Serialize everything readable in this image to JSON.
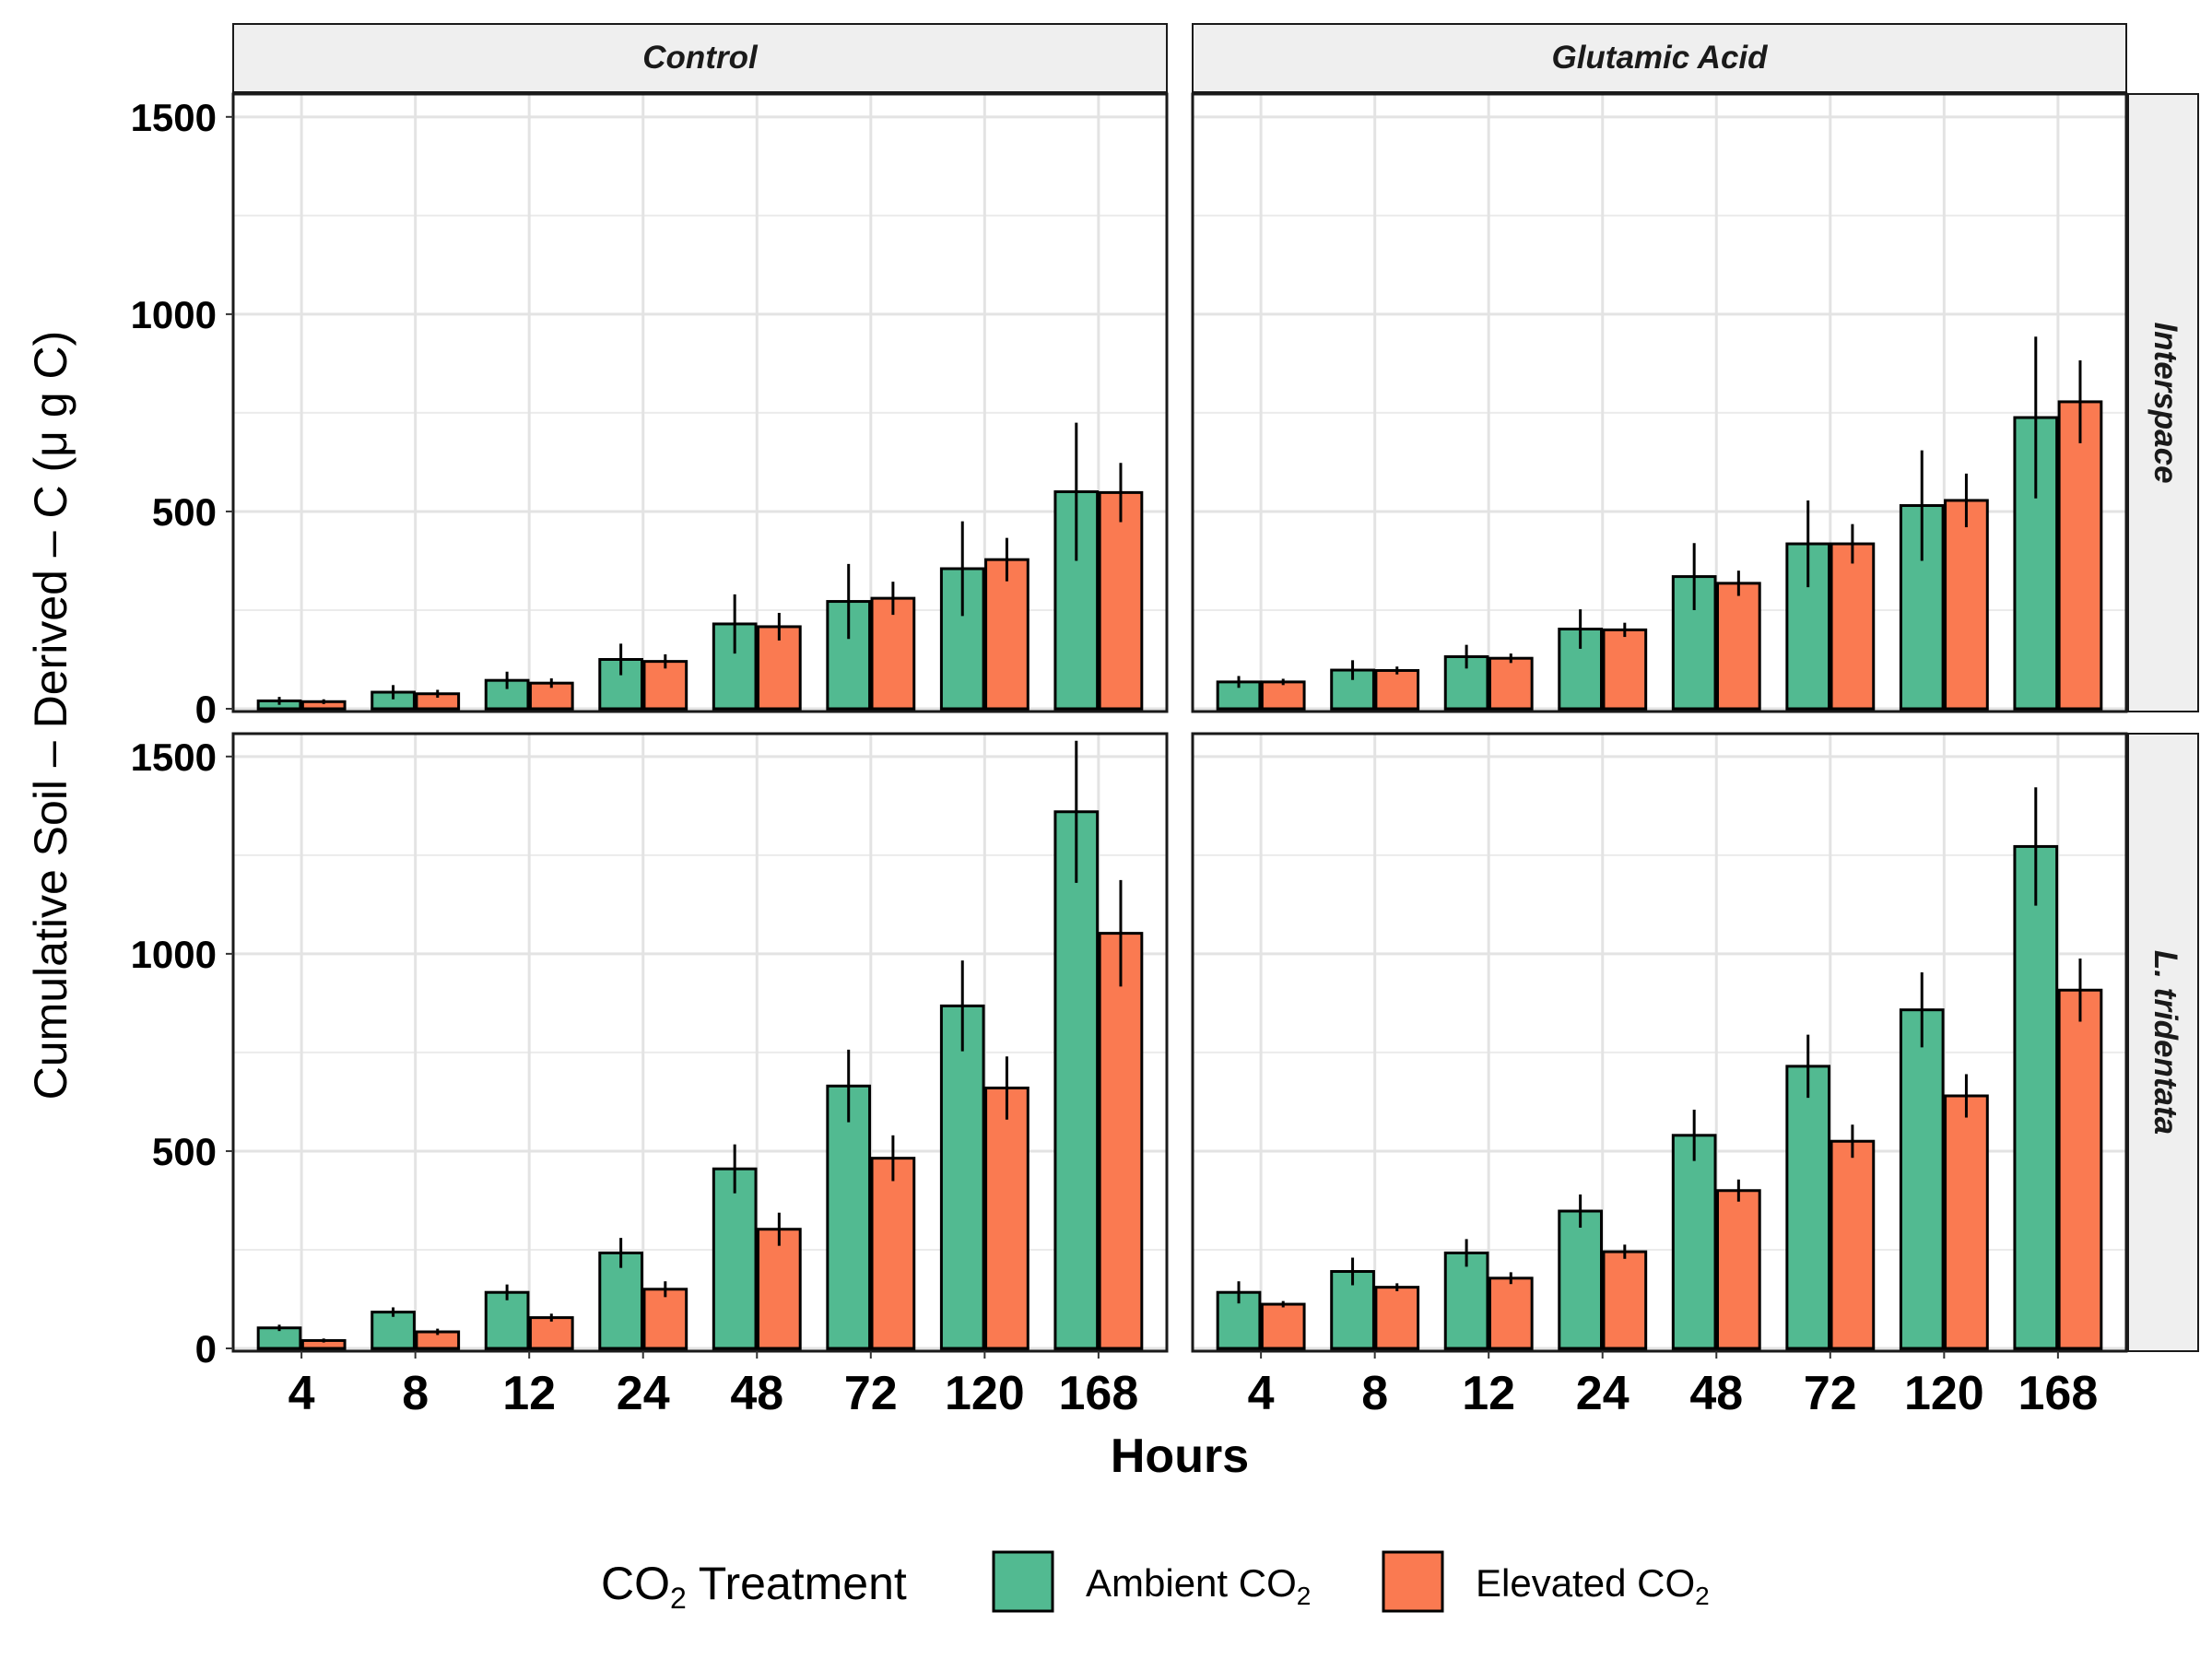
{
  "chart_data": {
    "type": "bar",
    "ylabel": "Cumulative Soil – Derived – C (μ g C)",
    "xlabel": "Hours",
    "categories": [
      "4",
      "8",
      "12",
      "24",
      "48",
      "72",
      "120",
      "168"
    ],
    "ylim": [
      0,
      1600
    ],
    "yticks": [
      0,
      500,
      1000,
      1500
    ],
    "grid": true,
    "legend": {
      "title_main": "CO",
      "title_sub": "2",
      "title_rest": " Treatment",
      "placement": "bottom",
      "items": [
        {
          "label_main": "Ambient CO",
          "label_sub": "2",
          "color": "#52BA91"
        },
        {
          "label_main": "Elevated CO",
          "label_sub": "2",
          "color": "#FA7A51"
        }
      ]
    },
    "column_facets": [
      "Control",
      "Glutamic Acid"
    ],
    "row_facets": [
      "Interspace",
      "L. tridentata"
    ],
    "panels": [
      {
        "row": 0,
        "col": 0,
        "series": [
          {
            "name": "Ambient CO2",
            "values": [
              20,
              42,
              72,
              125,
              215,
              272,
              355,
              550
            ],
            "err": [
              10,
              18,
              22,
              40,
              75,
              95,
              120,
              175
            ]
          },
          {
            "name": "Elevated CO2",
            "values": [
              18,
              38,
              65,
              120,
              208,
              280,
              378,
              548
            ],
            "err": [
              6,
              10,
              12,
              18,
              35,
              42,
              55,
              75
            ]
          }
        ]
      },
      {
        "row": 0,
        "col": 1,
        "series": [
          {
            "name": "Ambient CO2",
            "values": [
              68,
              98,
              132,
              202,
              335,
              418,
              515,
              738
            ],
            "err": [
              15,
              25,
              30,
              50,
              85,
              110,
              140,
              205
            ]
          },
          {
            "name": "Elevated CO2",
            "values": [
              68,
              97,
              128,
              200,
              318,
              418,
              528,
              778
            ],
            "err": [
              8,
              10,
              12,
              18,
              32,
              50,
              68,
              105
            ]
          }
        ]
      },
      {
        "row": 1,
        "col": 0,
        "series": [
          {
            "name": "Ambient CO2",
            "values": [
              52,
              92,
              142,
              242,
              455,
              665,
              868,
              1360
            ],
            "err": [
              8,
              12,
              20,
              38,
              62,
              92,
              115,
              180
            ]
          },
          {
            "name": "Elevated CO2",
            "values": [
              20,
              42,
              78,
              150,
              302,
              482,
              660,
              1052
            ],
            "err": [
              5,
              8,
              10,
              20,
              42,
              58,
              80,
              135
            ]
          }
        ]
      },
      {
        "row": 1,
        "col": 1,
        "series": [
          {
            "name": "Ambient CO2",
            "values": [
              142,
              195,
              242,
              348,
              540,
              715,
              858,
              1272
            ],
            "err": [
              28,
              35,
              35,
              42,
              65,
              80,
              95,
              150
            ]
          },
          {
            "name": "Elevated CO2",
            "values": [
              112,
              155,
              178,
              245,
              400,
              525,
              640,
              908
            ],
            "err": [
              8,
              10,
              15,
              18,
              28,
              42,
              55,
              80
            ]
          }
        ]
      }
    ]
  }
}
